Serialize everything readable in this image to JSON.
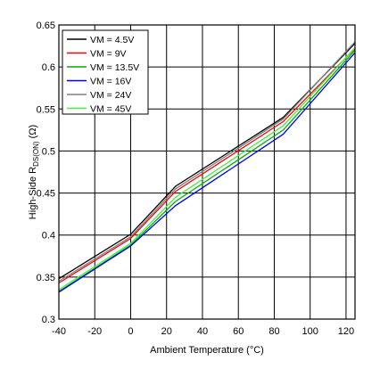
{
  "chart_data": {
    "type": "line",
    "title": "",
    "xlabel": "Ambient Temperature (°C)",
    "ylabel_main": "High-Side R",
    "ylabel_sub": "DS(ON)",
    "ylabel_unit": " (Ω)",
    "xlim": [
      -40,
      125
    ],
    "ylim": [
      0.3,
      0.65
    ],
    "xticks": [
      -40,
      -20,
      0,
      20,
      40,
      60,
      80,
      100,
      120
    ],
    "yticks": [
      0.3,
      0.35,
      0.4,
      0.45,
      0.5,
      0.55,
      0.6,
      0.65
    ],
    "grid": true,
    "legend_position": "top-left",
    "series": [
      {
        "name": "VM = 4.5V",
        "color": "#000000",
        "x": [
          -40,
          0,
          25,
          85,
          125
        ],
        "y": [
          0.348,
          0.401,
          0.458,
          0.54,
          0.628
        ]
      },
      {
        "name": "VM = 9V",
        "color": "#ff0000",
        "x": [
          -40,
          0,
          25,
          85,
          125
        ],
        "y": [
          0.343,
          0.396,
          0.452,
          0.535,
          0.622
        ]
      },
      {
        "name": "VM = 13.5V",
        "color": "#00b000",
        "x": [
          -40,
          0,
          25,
          85,
          125
        ],
        "y": [
          0.333,
          0.388,
          0.44,
          0.525,
          0.62
        ]
      },
      {
        "name": "VM = 16V",
        "color": "#0000ff",
        "x": [
          -40,
          0,
          25,
          85,
          125
        ],
        "y": [
          0.332,
          0.387,
          0.435,
          0.52,
          0.617
        ]
      },
      {
        "name": "VM = 24V",
        "color": "#808080",
        "x": [
          -40,
          0,
          25,
          85,
          125
        ],
        "y": [
          0.345,
          0.398,
          0.455,
          0.538,
          0.63
        ]
      },
      {
        "name": "VM = 45V",
        "color": "#44ee44",
        "x": [
          -40,
          0,
          25,
          85,
          125
        ],
        "y": [
          0.335,
          0.39,
          0.445,
          0.53,
          0.623
        ]
      }
    ]
  }
}
